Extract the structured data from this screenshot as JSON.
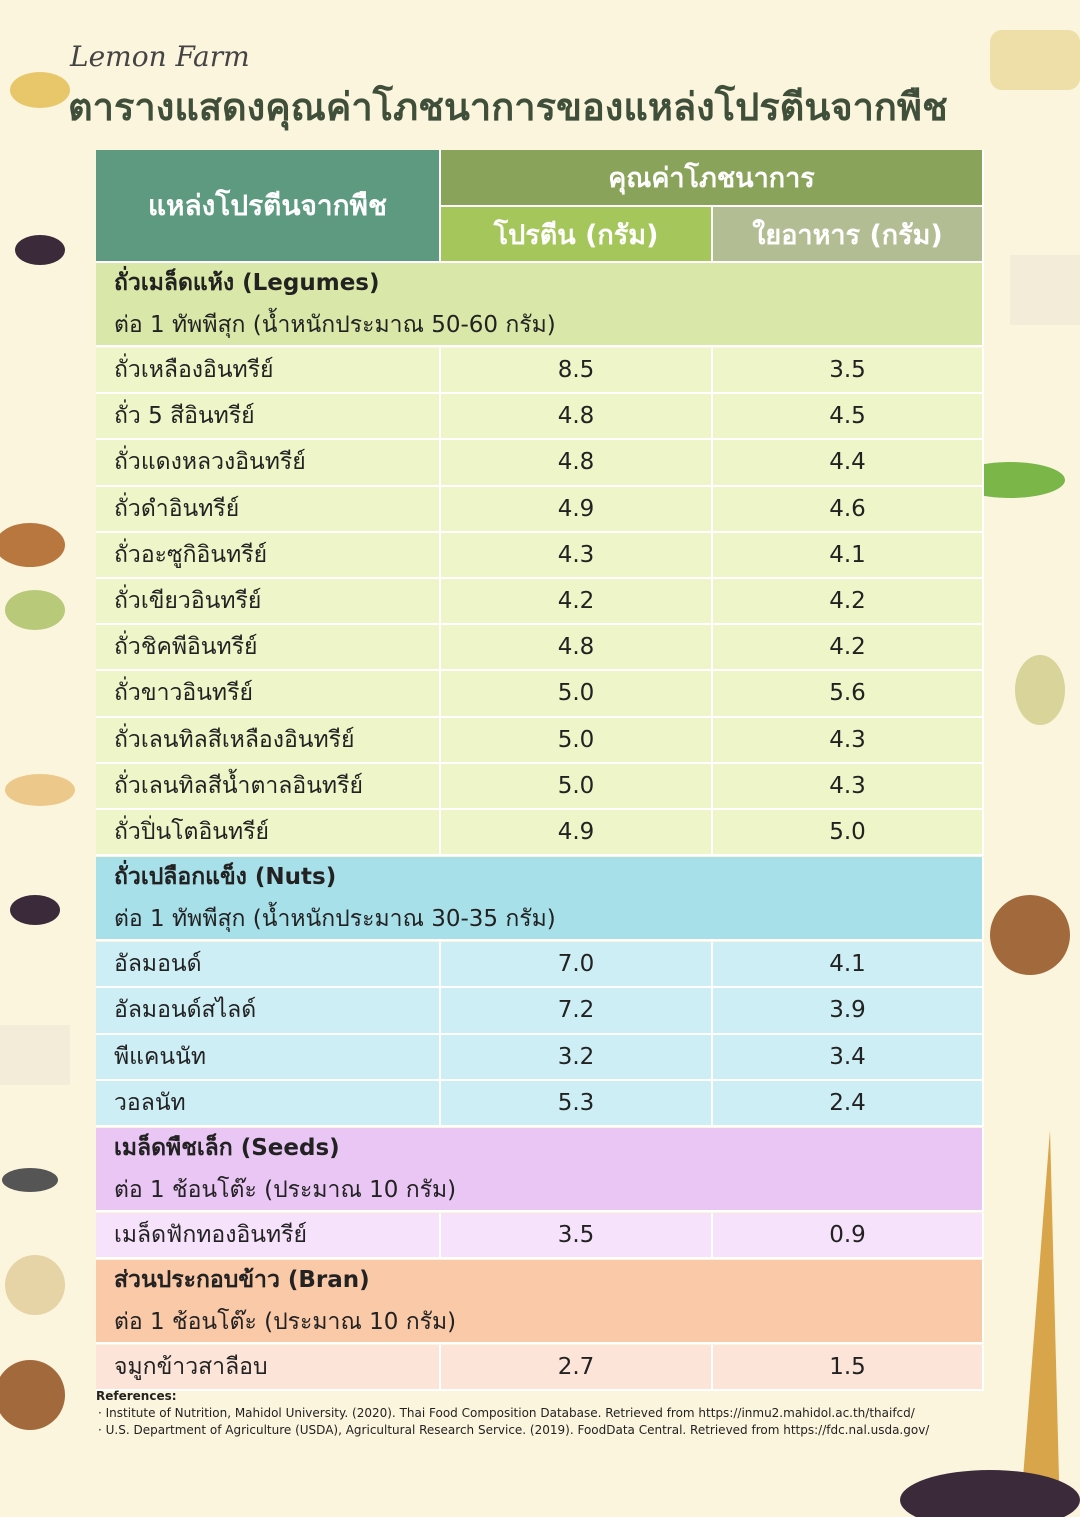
{
  "brand": "Lemon Farm",
  "title": "ตารางแสดงคุณค่าโภชนาการของแหล่งโปรตีนจากพืช",
  "table": {
    "header": {
      "source": "แหล่งโปรตีนจากพืช",
      "group": "คุณค่าโภชนาการ",
      "columns": [
        "โปรตีน (กรัม)",
        "ใยอาหาร (กรัม)"
      ]
    },
    "sections": [
      {
        "title": "ถั่วเมล็ดแห้ง (Legumes)",
        "note": "ต่อ 1 ทัพพีสุก (น้ำหนักประมาณ 50-60 กรัม)",
        "rows": [
          [
            "ถั่วเหลืองอินทรีย์",
            "8.5",
            "3.5"
          ],
          [
            "ถั่ว 5 สีอินทรีย์",
            "4.8",
            "4.5"
          ],
          [
            "ถั่วแดงหลวงอินทรีย์",
            "4.8",
            "4.4"
          ],
          [
            "ถั่วดำอินทรีย์",
            "4.9",
            "4.6"
          ],
          [
            "ถั่วอะซูกิอินทรีย์",
            "4.3",
            "4.1"
          ],
          [
            "ถั่วเขียวอินทรีย์",
            "4.2",
            "4.2"
          ],
          [
            "ถั่วชิคพีอินทรีย์",
            "4.8",
            "4.2"
          ],
          [
            "ถั่วขาวอินทรีย์",
            "5.0",
            "5.6"
          ],
          [
            "ถั่วเลนทิลสีเหลืองอินทรีย์",
            "5.0",
            "4.3"
          ],
          [
            "ถั่วเลนทิลสีน้ำตาลอินทรีย์",
            "5.0",
            "4.3"
          ],
          [
            "ถั่วปิ่นโตอินทรีย์",
            "4.9",
            "5.0"
          ]
        ]
      },
      {
        "title": "ถั่วเปลือกแข็ง (Nuts)",
        "note": "ต่อ 1 ทัพพีสุก (น้ำหนักประมาณ 30-35 กรัม)",
        "rows": [
          [
            "อัลมอนด์",
            "7.0",
            "4.1"
          ],
          [
            "อัลมอนด์สไลด์",
            "7.2",
            "3.9"
          ],
          [
            "พีแคนนัท",
            "3.2",
            "3.4"
          ],
          [
            "วอลนัท",
            "5.3",
            "2.4"
          ]
        ]
      },
      {
        "title": "เมล็ดพืชเล็ก (Seeds)",
        "note": "ต่อ 1 ช้อนโต๊ะ (ประมาณ 10 กรัม)",
        "rows": [
          [
            "เมล็ดฟักทองอินทรีย์",
            "3.5",
            "0.9"
          ]
        ]
      },
      {
        "title": "ส่วนประกอบข้าว (Bran)",
        "note": "ต่อ 1 ช้อนโต๊ะ (ประมาณ 10 กรัม)",
        "rows": [
          [
            "จมูกข้าวสาลีอบ",
            "2.7",
            "1.5"
          ]
        ]
      }
    ]
  },
  "references": {
    "heading": "References:",
    "items": [
      "· Institute of Nutrition, Mahidol University. (2020). Thai Food Composition Database. Retrieved from https://inmu2.mahidol.ac.th/thaifcd/",
      "· U.S. Department of Agriculture (USDA), Agricultural Research Service. (2019). FoodData Central. Retrieved from https://fdc.nal.usda.gov/"
    ]
  }
}
